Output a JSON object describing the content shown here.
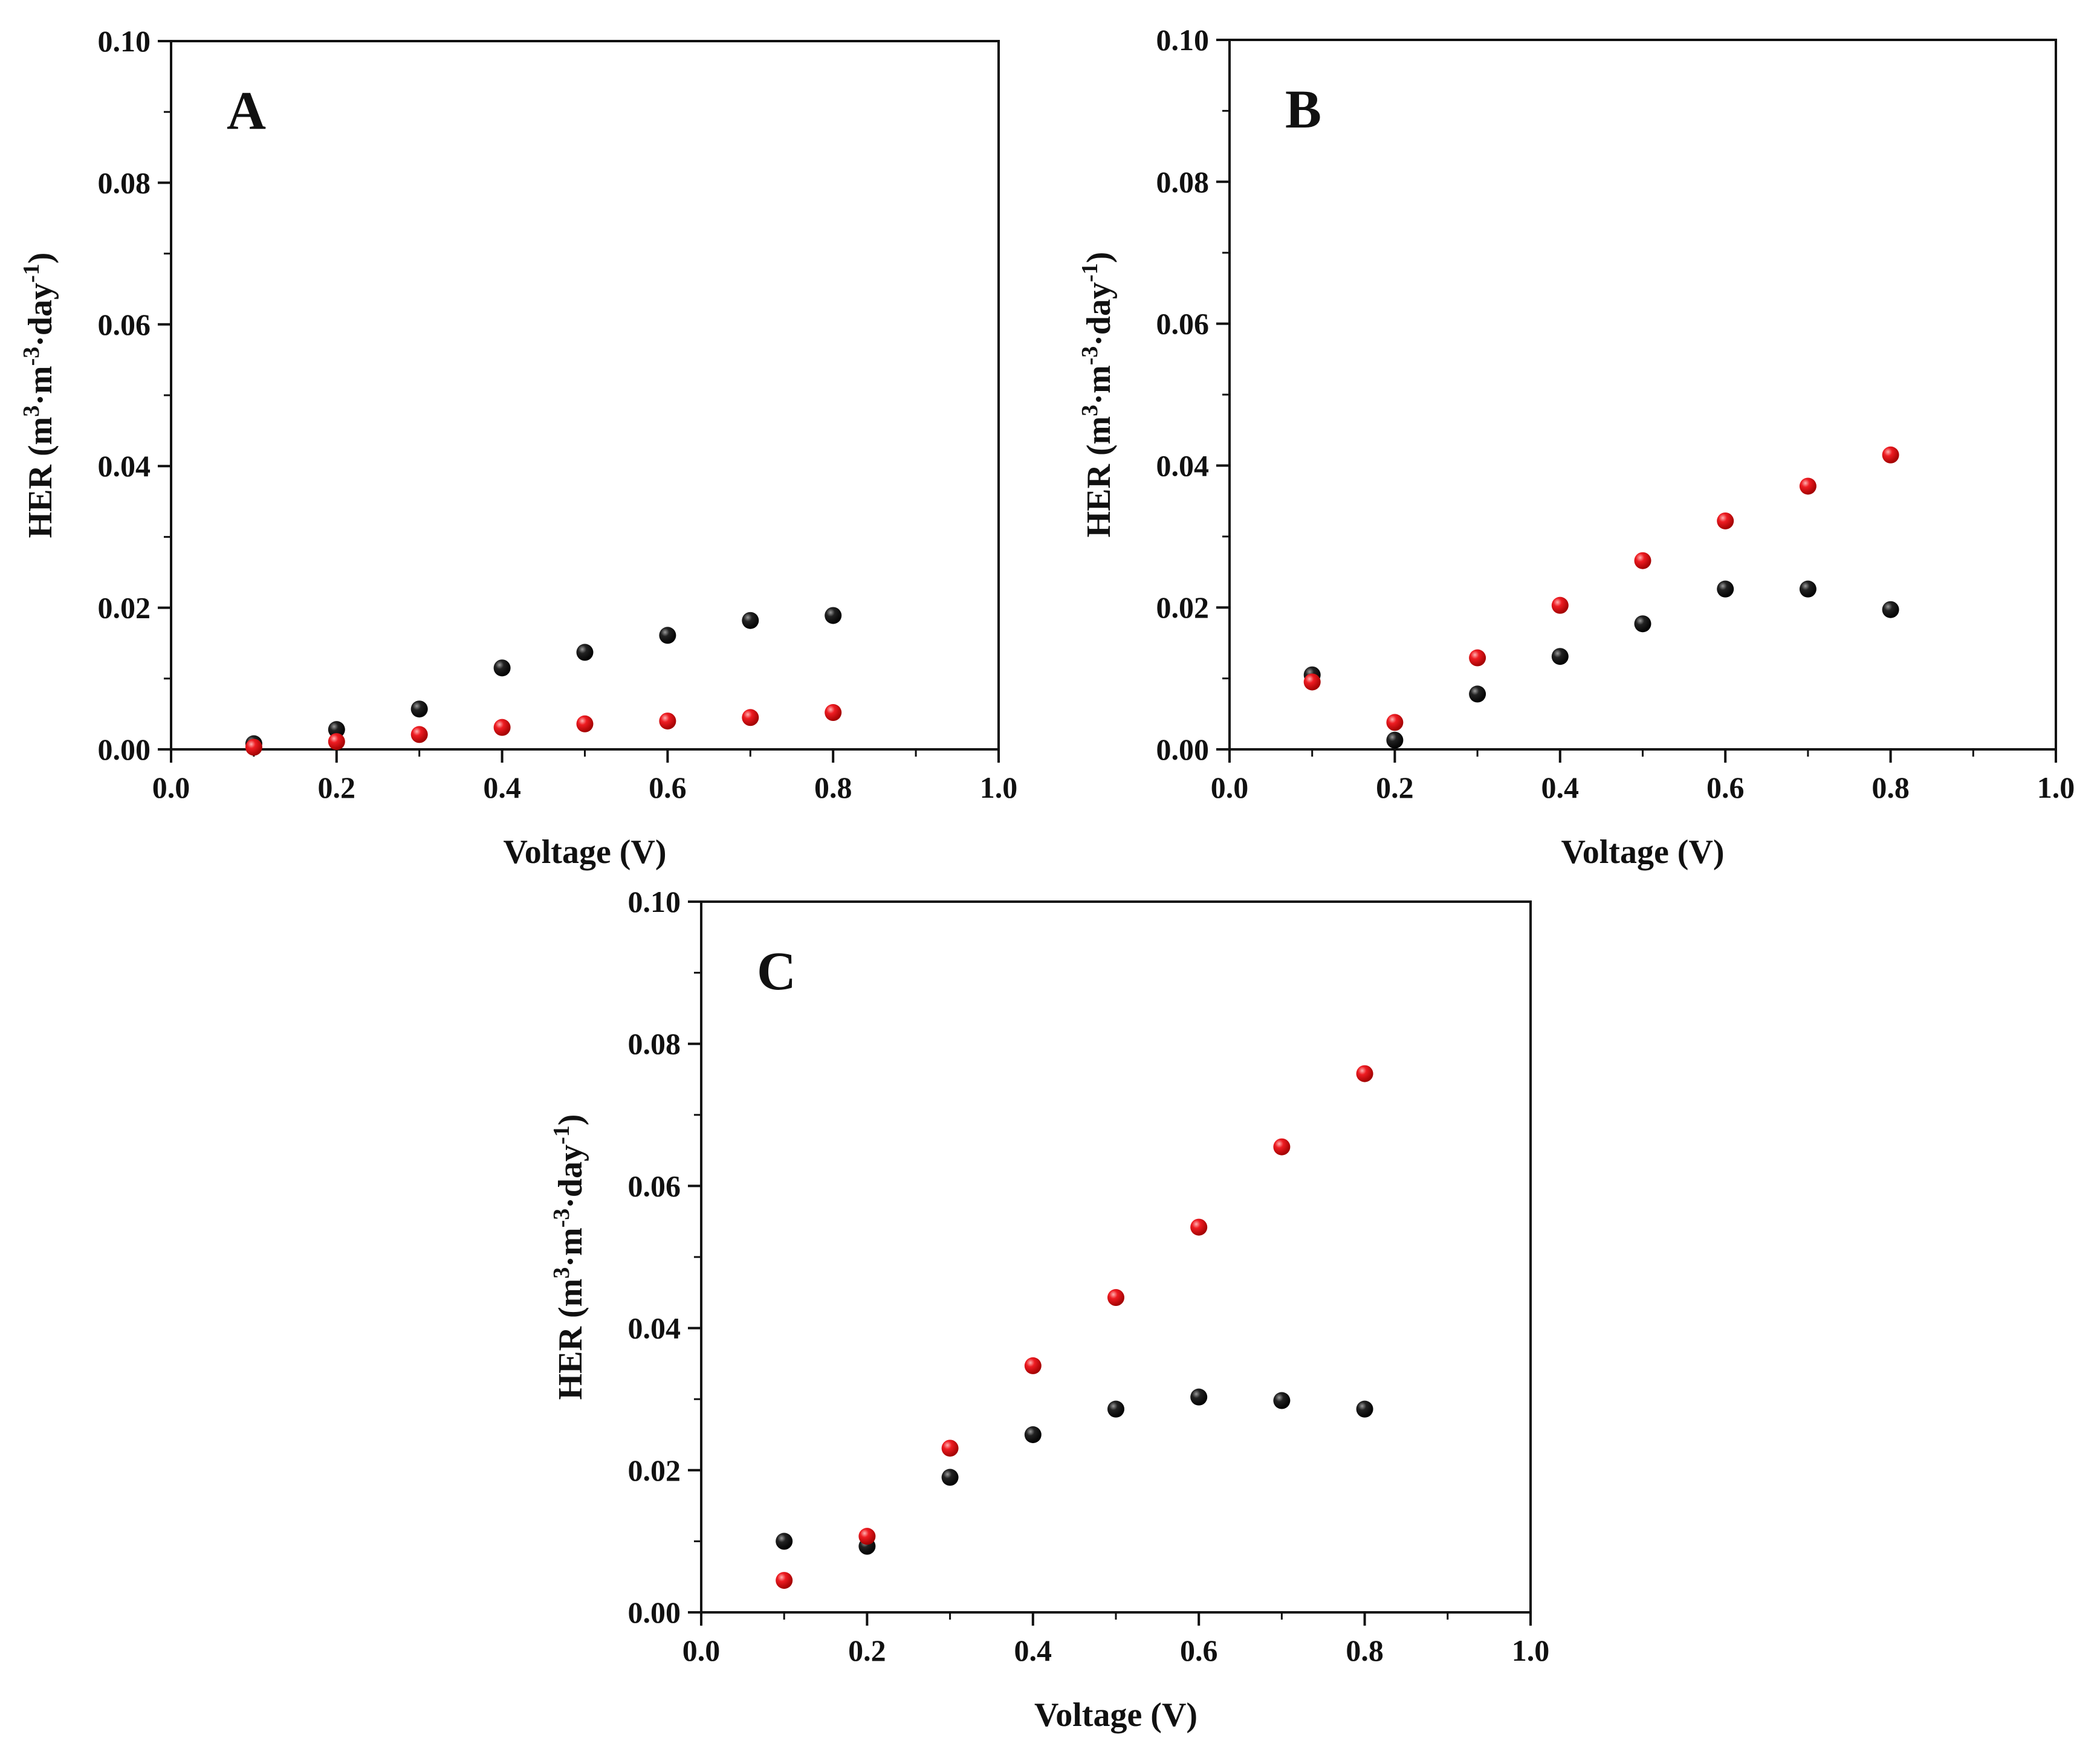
{
  "figure": {
    "colors": {
      "black_series": "#111111",
      "red_series": "#e8141b",
      "axis": "#111111",
      "background": "#ffffff"
    }
  },
  "chart_data": [
    {
      "type": "scatter",
      "panel": "A",
      "xlabel": "Voltage (V)",
      "ylabel": {
        "base": "HER (m",
        "sup1": "3",
        "mid1": "·m",
        "sup2": "-3",
        "mid2": "·day",
        "sup3": "-1",
        "end": ")"
      },
      "xlim": [
        0.0,
        1.0
      ],
      "ylim": [
        0.0,
        0.1
      ],
      "xticks": [
        "0.0",
        "0.2",
        "0.4",
        "0.6",
        "0.8",
        "1.0"
      ],
      "yticks": [
        "0.00",
        "0.02",
        "0.04",
        "0.06",
        "0.08",
        "0.10"
      ],
      "series": [
        {
          "name": "black",
          "color": "#111111",
          "x": [
            0.1,
            0.2,
            0.3,
            0.4,
            0.5,
            0.6,
            0.7,
            0.8
          ],
          "y": [
            0.0008,
            0.0028,
            0.0057,
            0.0115,
            0.0137,
            0.0161,
            0.0182,
            0.0189
          ]
        },
        {
          "name": "red",
          "color": "#e8141b",
          "x": [
            0.1,
            0.2,
            0.3,
            0.4,
            0.5,
            0.6,
            0.7,
            0.8
          ],
          "y": [
            0.0003,
            0.0011,
            0.0021,
            0.0031,
            0.0036,
            0.004,
            0.0045,
            0.0052
          ]
        }
      ]
    },
    {
      "type": "scatter",
      "panel": "B",
      "xlabel": "Voltage (V)",
      "ylabel": {
        "base": "HER (m",
        "sup1": "3",
        "mid1": "·m",
        "sup2": "-3",
        "mid2": "·day",
        "sup3": "-1",
        "end": ")"
      },
      "xlim": [
        0.0,
        1.0
      ],
      "ylim": [
        0.0,
        0.1
      ],
      "xticks": [
        "0.0",
        "0.2",
        "0.4",
        "0.6",
        "0.8",
        "1.0"
      ],
      "yticks": [
        "0.00",
        "0.02",
        "0.04",
        "0.06",
        "0.08",
        "0.10"
      ],
      "series": [
        {
          "name": "black",
          "color": "#111111",
          "x": [
            0.1,
            0.2,
            0.3,
            0.4,
            0.5,
            0.6,
            0.7,
            0.8
          ],
          "y": [
            0.0105,
            0.0013,
            0.0078,
            0.0131,
            0.0177,
            0.0226,
            0.0226,
            0.0197
          ]
        },
        {
          "name": "red",
          "color": "#e8141b",
          "x": [
            0.1,
            0.2,
            0.3,
            0.4,
            0.5,
            0.6,
            0.7,
            0.8
          ],
          "y": [
            0.0095,
            0.0038,
            0.0129,
            0.0203,
            0.0266,
            0.0322,
            0.0371,
            0.0415
          ]
        }
      ]
    },
    {
      "type": "scatter",
      "panel": "C",
      "xlabel": "Voltage (V)",
      "ylabel": {
        "base": "HER (m",
        "sup1": "3",
        "mid1": "·m",
        "sup2": "-3",
        "mid2": "·day",
        "sup3": "-1",
        "end": ")"
      },
      "xlim": [
        0.0,
        1.0
      ],
      "ylim": [
        0.0,
        0.1
      ],
      "xticks": [
        "0.0",
        "0.2",
        "0.4",
        "0.6",
        "0.8",
        "1.0"
      ],
      "yticks": [
        "0.00",
        "0.02",
        "0.04",
        "0.06",
        "0.08",
        "0.10"
      ],
      "series": [
        {
          "name": "black",
          "color": "#111111",
          "x": [
            0.1,
            0.2,
            0.3,
            0.4,
            0.5,
            0.6,
            0.7,
            0.8
          ],
          "y": [
            0.01,
            0.0093,
            0.019,
            0.025,
            0.0286,
            0.0303,
            0.0298,
            0.0286
          ]
        },
        {
          "name": "red",
          "color": "#e8141b",
          "x": [
            0.1,
            0.2,
            0.3,
            0.4,
            0.5,
            0.6,
            0.7,
            0.8
          ],
          "y": [
            0.0045,
            0.0107,
            0.0231,
            0.0347,
            0.0443,
            0.0542,
            0.0655,
            0.0758
          ]
        }
      ]
    }
  ]
}
